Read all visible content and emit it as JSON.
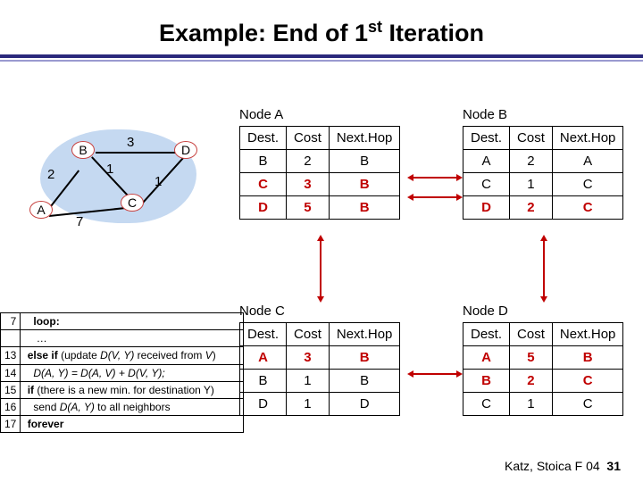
{
  "title_pre": "Example: End of 1",
  "title_sup": "st",
  "title_post": " Iteration",
  "graph": {
    "blob_color": "#c5d9f1",
    "node_border": "#c7413f",
    "nodes": {
      "A": "A",
      "B": "B",
      "C": "C",
      "D": "D"
    },
    "weights": {
      "AB": "2",
      "BD": "3",
      "BC": "1",
      "CD": "1",
      "AC": "7"
    }
  },
  "tables": {
    "a": {
      "label": "Node A",
      "headers": [
        "Dest.",
        "Cost",
        "Next.Hop"
      ],
      "rows": [
        {
          "cells": [
            "B",
            "2",
            "B"
          ],
          "highlight": false
        },
        {
          "cells": [
            "C",
            "3",
            "B"
          ],
          "highlight": true
        },
        {
          "cells": [
            "D",
            "5",
            "B"
          ],
          "highlight": true
        }
      ]
    },
    "b": {
      "label": "Node B",
      "headers": [
        "Dest.",
        "Cost",
        "Next.Hop"
      ],
      "rows": [
        {
          "cells": [
            "A",
            "2",
            "A"
          ],
          "highlight": false
        },
        {
          "cells": [
            "C",
            "1",
            "C"
          ],
          "highlight": false
        },
        {
          "cells": [
            "D",
            "2",
            "C"
          ],
          "highlight": true
        }
      ]
    },
    "c": {
      "label": "Node C",
      "headers": [
        "Dest.",
        "Cost",
        "Next.Hop"
      ],
      "rows": [
        {
          "cells": [
            "A",
            "3",
            "B"
          ],
          "highlight": true
        },
        {
          "cells": [
            "B",
            "1",
            "B"
          ],
          "highlight": false
        },
        {
          "cells": [
            "D",
            "1",
            "D"
          ],
          "highlight": false
        }
      ]
    },
    "d": {
      "label": "Node D",
      "headers": [
        "Dest.",
        "Cost",
        "Next.Hop"
      ],
      "rows": [
        {
          "cells": [
            "A",
            "5",
            "B"
          ],
          "highlight": true
        },
        {
          "cells": [
            "B",
            "2",
            "C"
          ],
          "highlight": true
        },
        {
          "cells": [
            "C",
            "1",
            "C"
          ],
          "highlight": false
        }
      ]
    }
  },
  "code": {
    "lines": [
      {
        "n": "7",
        "html": "&nbsp;&nbsp;&nbsp;<span class='kw'>loop:</span>"
      },
      {
        "n": "",
        "html": "&nbsp;&nbsp;&nbsp;&nbsp;…"
      },
      {
        "n": "13",
        "html": "&nbsp;<span class='kw'>else if</span> (update <span class='it'>D(V, Y)</span> received from <span class='it'>V</span>)"
      },
      {
        "n": "14",
        "html": "&nbsp;&nbsp;&nbsp;<span class='it'>D(A, Y) = D(A, V) + D(V, Y);</span>"
      },
      {
        "n": "15",
        "html": "&nbsp;<span class='kw'>if</span> (there is a new min. for destination Y)"
      },
      {
        "n": "16",
        "html": "&nbsp;&nbsp;&nbsp;send <span class='it'>D(A, Y)</span> to all neighbors"
      },
      {
        "n": "17",
        "html": "&nbsp;<span class='kw'>forever</span>"
      }
    ]
  },
  "footer": {
    "text": "Katz, Stoica F 04",
    "page": "31"
  },
  "colors": {
    "highlight": "#c00000",
    "rule_dark": "#2a297c",
    "rule_light": "#9a9ad0"
  }
}
